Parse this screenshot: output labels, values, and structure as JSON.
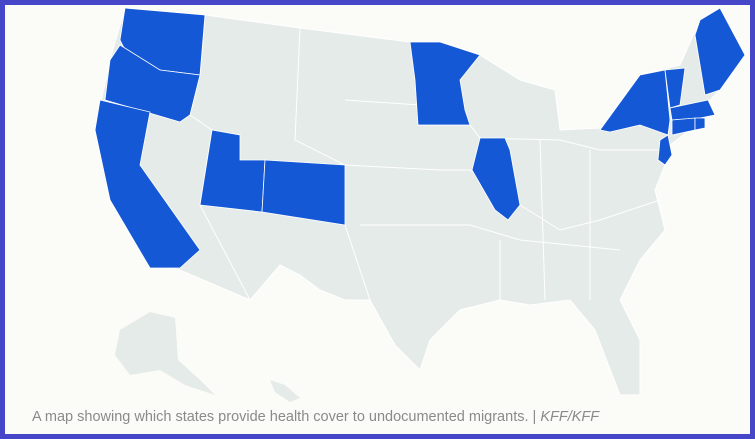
{
  "caption": {
    "text": "A map showing which states provide health cover to undocumented migrants. | ",
    "credit": "KFF/KFF"
  },
  "map": {
    "highlighted_states": [
      "Washington",
      "Oregon",
      "California",
      "Utah",
      "Colorado",
      "Minnesota",
      "Illinois",
      "New York",
      "Vermont",
      "Maine",
      "Massachusetts",
      "Connecticut",
      "Rhode Island",
      "New Jersey"
    ],
    "colors": {
      "highlight": "#1558d6",
      "base": "#e4ebe8",
      "border": "#4646c8",
      "background": "#fbfbf7"
    }
  }
}
